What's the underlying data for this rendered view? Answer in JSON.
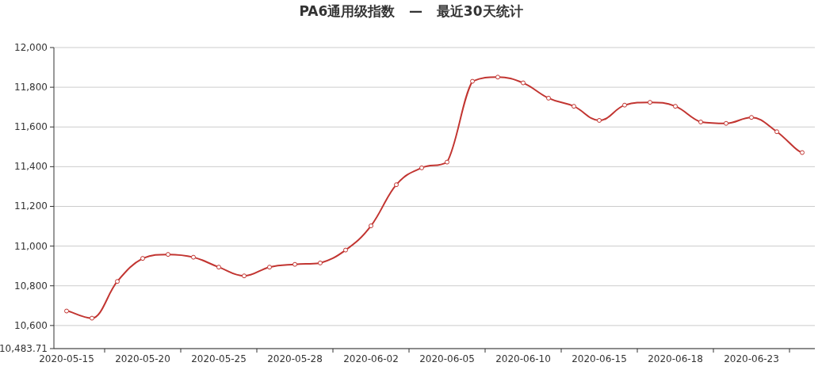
{
  "chart_data": {
    "type": "line",
    "title": "PA6通用级指数   —   最近30天统计",
    "categories": [
      "2020-05-15",
      null,
      null,
      "2020-05-20",
      null,
      null,
      "2020-05-25",
      null,
      null,
      "2020-05-28",
      null,
      null,
      "2020-06-02",
      null,
      null,
      "2020-06-05",
      null,
      null,
      "2020-06-10",
      null,
      null,
      "2020-06-15",
      null,
      null,
      "2020-06-18",
      null,
      null,
      "2020-06-23",
      null,
      null
    ],
    "series": [
      {
        "color": "#c23531",
        "values": [
          10673,
          10637,
          10822,
          10938,
          10958,
          10944,
          10894,
          10850,
          10894,
          10908,
          10915,
          10980,
          11102,
          11309,
          11394,
          11423,
          11830,
          11851,
          11822,
          11745,
          11704,
          11633,
          11710,
          11724,
          11704,
          11625,
          11618,
          11648,
          11576,
          11471
        ]
      }
    ],
    "ylim": [
      10483.71,
      12000
    ],
    "yticks": [
      {
        "value": 10483.71,
        "label": "10,483.71"
      },
      {
        "value": 10600,
        "label": "10,600"
      },
      {
        "value": 10800,
        "label": "10,800"
      },
      {
        "value": 11000,
        "label": "11,000"
      },
      {
        "value": 11200,
        "label": "11,200"
      },
      {
        "value": 11400,
        "label": "11,400"
      },
      {
        "value": 11600,
        "label": "11,600"
      },
      {
        "value": 11800,
        "label": "11,800"
      },
      {
        "value": 12000,
        "label": "12,000"
      }
    ],
    "grid": "y",
    "marker": "circle",
    "line_style": "solid"
  }
}
